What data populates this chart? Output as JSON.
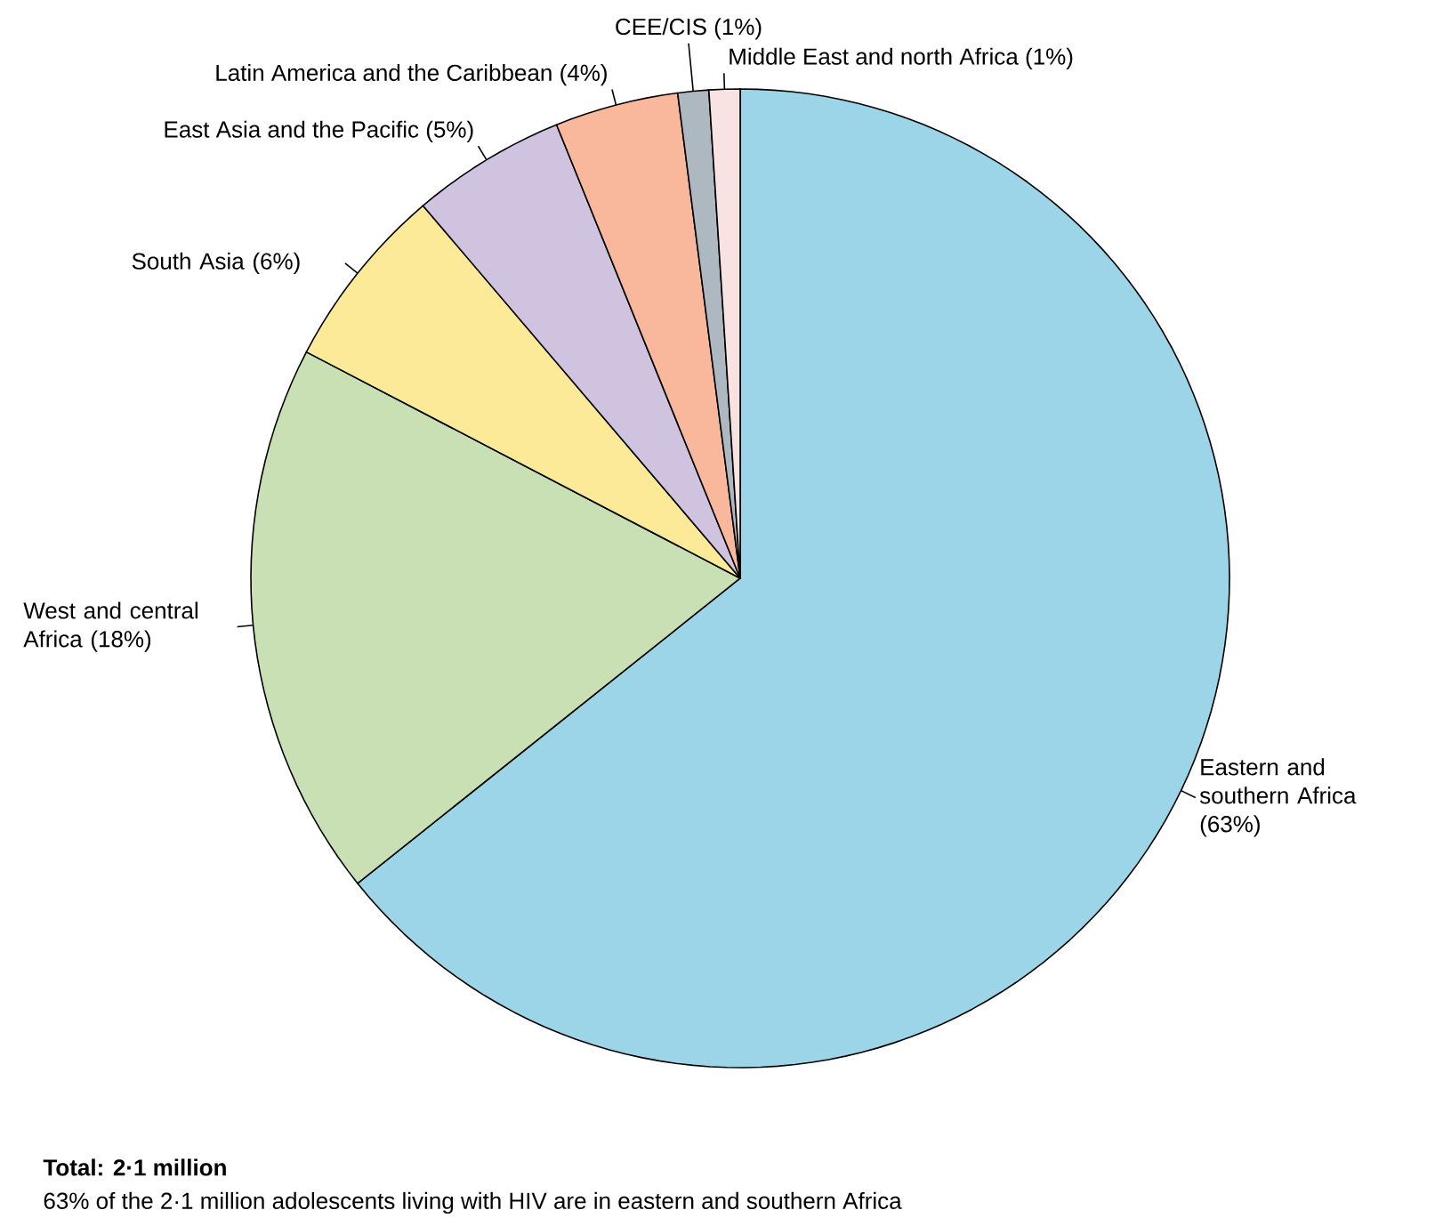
{
  "chart_data": {
    "type": "pie",
    "categories": [
      "Eastern and southern Africa",
      "West and central Africa",
      "South Asia",
      "East Asia and the Pacific",
      "Latin America and the Caribbean",
      "CEE/CIS",
      "Middle East and north Africa"
    ],
    "values": [
      63,
      18,
      6,
      5,
      4,
      1,
      1
    ],
    "value_labels": [
      "(63%)",
      "(18%)",
      "(6%)",
      "(5%)",
      "(4%)",
      "(1%)",
      "(1%)"
    ],
    "colors": [
      "#9dd5e8",
      "#c9e0b4",
      "#fdea98",
      "#d0c3e0",
      "#f9b89c",
      "#aeb8c0",
      "#f8e2e2"
    ],
    "annotations": [
      "Total: 2·1 million",
      "63% of the 2·1 million adolescents living with HIV are in eastern and southern Africa"
    ]
  }
}
